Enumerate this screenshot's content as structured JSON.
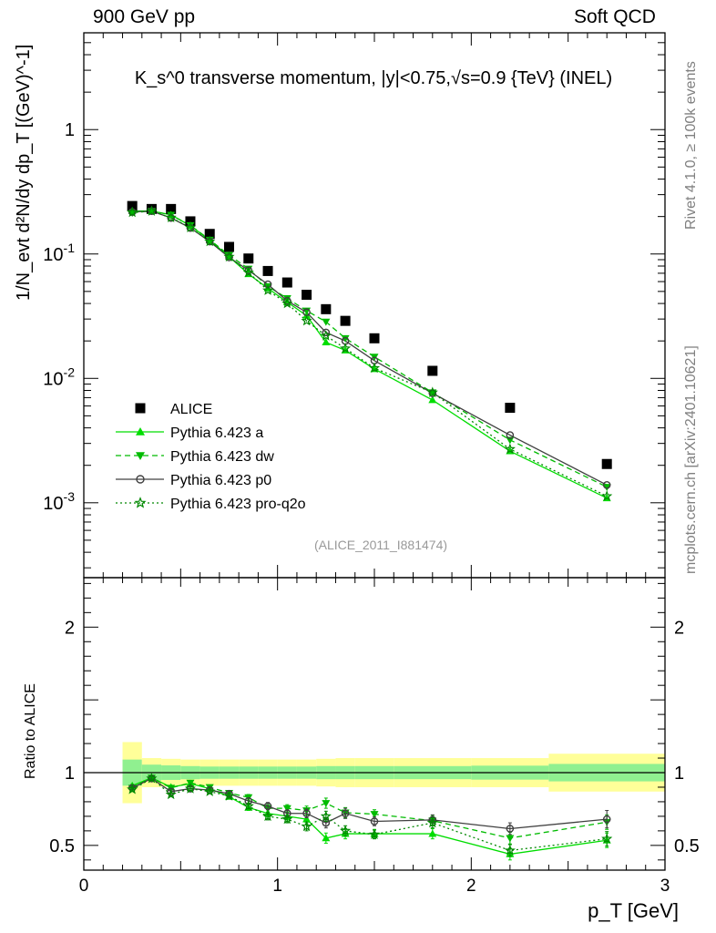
{
  "header": {
    "energy_label": "900 GeV pp",
    "process_label": "Soft QCD"
  },
  "side_text": {
    "rivet": "Rivet 4.1.0, ≥ 100k events",
    "source": "mcplots.cern.ch [arXiv:2401.10621]"
  },
  "chart_data": [
    {
      "type": "scatter",
      "panel": "main",
      "title": "K_s^0 transverse momentum, |y|<0.75,√s=0.9 {TeV} (INEL)",
      "analysis_label": "(ALICE_2011_I881474)",
      "ylabel": "1/N_evt d²N/dy dp_T [(GeV)^-1]",
      "yscale": "log",
      "xlim": [
        0,
        3
      ],
      "ylim": [
        0.00025,
        6
      ],
      "y_ticks": [
        {
          "value": 0.001,
          "base": "10",
          "exp": "-3"
        },
        {
          "value": 0.01,
          "base": "10",
          "exp": "-2"
        },
        {
          "value": 0.1,
          "base": "10",
          "exp": "-1"
        },
        {
          "value": 1,
          "base": "1",
          "exp": ""
        }
      ],
      "legend_position": "lower-left",
      "x": [
        0.25,
        0.35,
        0.45,
        0.55,
        0.65,
        0.75,
        0.85,
        0.95,
        1.05,
        1.15,
        1.25,
        1.35,
        1.5,
        1.8,
        2.2,
        2.7
      ],
      "series": [
        {
          "name": "ALICE",
          "color": "#000000",
          "marker": "square",
          "line": "none",
          "values": [
            0.243,
            0.23,
            0.23,
            0.183,
            0.145,
            0.114,
            0.092,
            0.073,
            0.059,
            0.047,
            0.036,
            0.029,
            0.021,
            0.0115,
            0.0058,
            0.00205
          ]
        },
        {
          "name": "Pythia 6.423 a",
          "color": "#00dd00",
          "marker": "triangle-up",
          "line": "solid",
          "values": [
            0.222,
            0.222,
            0.206,
            0.169,
            0.129,
            0.095,
            0.069,
            0.053,
            0.041,
            0.032,
            0.0195,
            0.0168,
            0.0119,
            0.0067,
            0.0026,
            0.00109
          ]
        },
        {
          "name": "Pythia 6.423 dw",
          "color": "#00bb00",
          "marker": "triangle-down",
          "line": "dashed",
          "values": [
            0.214,
            0.222,
            0.206,
            0.17,
            0.13,
            0.098,
            0.076,
            0.055,
            0.044,
            0.035,
            0.0285,
            0.021,
            0.0149,
            0.0077,
            0.0032,
            0.00134
          ]
        },
        {
          "name": "Pythia 6.423 p0",
          "color": "#404040",
          "marker": "open-circle",
          "line": "solid",
          "values": [
            0.218,
            0.221,
            0.195,
            0.162,
            0.126,
            0.094,
            0.074,
            0.057,
            0.042,
            0.034,
            0.0234,
            0.02,
            0.0139,
            0.0076,
            0.0035,
            0.00139
          ]
        },
        {
          "name": "Pythia 6.423 pro-q2o",
          "color": "#008800",
          "marker": "star",
          "line": "dotted",
          "values": [
            0.216,
            0.221,
            0.196,
            0.163,
            0.126,
            0.095,
            0.071,
            0.051,
            0.04,
            0.029,
            0.022,
            0.0174,
            0.0121,
            0.0077,
            0.0027,
            0.00113
          ]
        }
      ]
    },
    {
      "type": "line",
      "panel": "ratio",
      "ylabel": "Ratio to ALICE",
      "xlabel": "p_T [GeV]",
      "xlim": [
        0,
        3
      ],
      "ylim": [
        0.33,
        2.34
      ],
      "x_ticks": [
        0,
        1,
        2,
        3
      ],
      "y_ticks": [
        0.5,
        1,
        2
      ],
      "reference_line": 1,
      "uncertainty_bands": {
        "bin_edges": [
          0.2,
          0.3,
          0.4,
          0.5,
          0.6,
          0.7,
          0.8,
          0.9,
          1.0,
          1.1,
          1.2,
          1.3,
          1.4,
          1.6,
          2.0,
          2.4,
          3.0
        ],
        "inner_halfwidth": [
          0.09,
          0.055,
          0.05,
          0.045,
          0.042,
          0.042,
          0.042,
          0.042,
          0.042,
          0.042,
          0.045,
          0.045,
          0.045,
          0.045,
          0.048,
          0.06
        ],
        "outer_halfwidth": [
          0.21,
          0.1,
          0.095,
          0.09,
          0.09,
          0.09,
          0.09,
          0.09,
          0.09,
          0.09,
          0.095,
          0.1,
          0.1,
          0.1,
          0.1,
          0.13
        ],
        "inner_color": "#90f090",
        "outer_color": "#ffff99"
      },
      "x": [
        0.25,
        0.35,
        0.45,
        0.55,
        0.65,
        0.75,
        0.85,
        0.95,
        1.05,
        1.15,
        1.25,
        1.35,
        1.5,
        1.8,
        2.2,
        2.7
      ],
      "series": [
        {
          "name": "Pythia 6.423 a",
          "color": "#00dd00",
          "marker": "triangle-up",
          "line": "solid",
          "values": [
            0.91,
            0.965,
            0.9,
            0.925,
            0.89,
            0.835,
            0.76,
            0.72,
            0.7,
            0.68,
            0.55,
            0.58,
            0.58,
            0.58,
            0.44,
            0.535
          ],
          "errors": [
            0.01,
            0.01,
            0.01,
            0.012,
            0.012,
            0.015,
            0.02,
            0.025,
            0.025,
            0.03,
            0.035,
            0.035,
            0.03,
            0.035,
            0.04,
            0.05
          ]
        },
        {
          "name": "Pythia 6.423 dw",
          "color": "#00bb00",
          "marker": "triangle-down",
          "line": "dashed",
          "values": [
            0.895,
            0.965,
            0.895,
            0.93,
            0.9,
            0.86,
            0.83,
            0.755,
            0.755,
            0.74,
            0.79,
            0.725,
            0.715,
            0.67,
            0.55,
            0.66
          ],
          "errors": [
            0.01,
            0.01,
            0.01,
            0.012,
            0.012,
            0.015,
            0.02,
            0.025,
            0.025,
            0.03,
            0.035,
            0.035,
            0.03,
            0.035,
            0.04,
            0.05
          ]
        },
        {
          "name": "Pythia 6.423 p0",
          "color": "#404040",
          "marker": "open-circle",
          "line": "solid",
          "values": [
            0.895,
            0.96,
            0.87,
            0.89,
            0.88,
            0.855,
            0.805,
            0.77,
            0.72,
            0.72,
            0.655,
            0.72,
            0.665,
            0.675,
            0.615,
            0.68
          ],
          "errors": [
            0.01,
            0.01,
            0.01,
            0.012,
            0.012,
            0.015,
            0.02,
            0.025,
            0.025,
            0.03,
            0.035,
            0.035,
            0.03,
            0.035,
            0.04,
            0.06
          ]
        },
        {
          "name": "Pythia 6.423 pro-q2o",
          "color": "#008800",
          "marker": "star",
          "line": "dotted",
          "values": [
            0.885,
            0.96,
            0.85,
            0.89,
            0.87,
            0.84,
            0.77,
            0.7,
            0.68,
            0.63,
            0.7,
            0.6,
            0.575,
            0.655,
            0.465,
            0.545
          ],
          "errors": [
            0.01,
            0.01,
            0.01,
            0.012,
            0.012,
            0.015,
            0.02,
            0.025,
            0.025,
            0.03,
            0.035,
            0.035,
            0.03,
            0.035,
            0.04,
            0.05
          ]
        }
      ]
    }
  ]
}
